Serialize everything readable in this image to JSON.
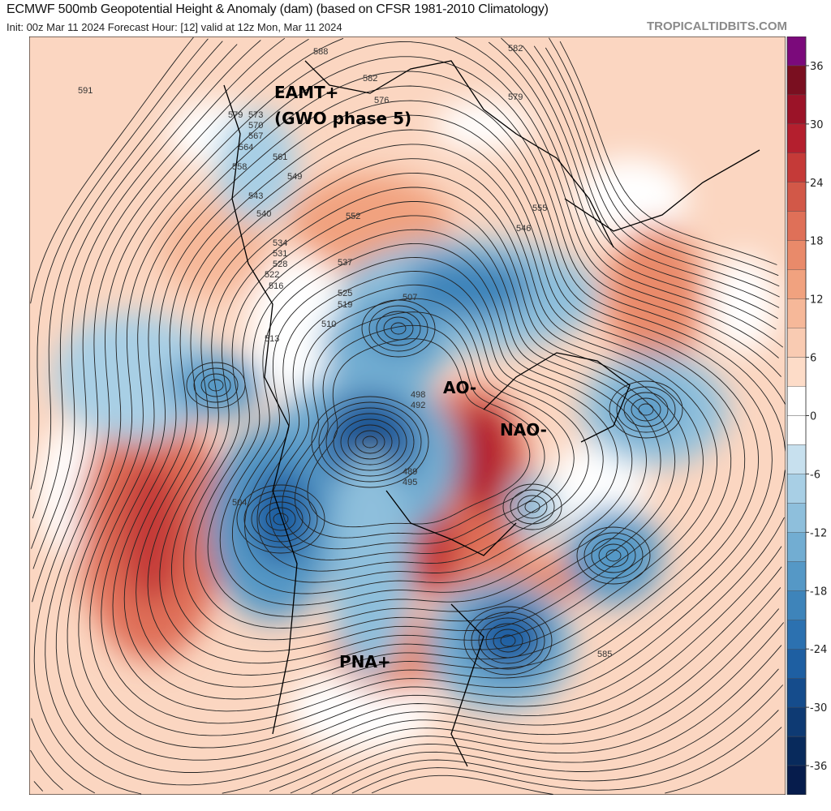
{
  "header": {
    "title": "ECMWF 500mb Geopotential Height & Anomaly (dam) (based on CFSR 1981-2010 Climatology)",
    "subtitle": "Init: 00z Mar 11 2024   Forecast Hour: [12]   valid at 12z Mon, Mar 11 2024",
    "brand": "TROPICALTIDBITS.COM"
  },
  "map": {
    "projection": "north-polar-stereographic",
    "annotations": [
      "EAMT+",
      "(GWO phase 5)",
      "AO-",
      "NAO-",
      "PNA+"
    ],
    "contour_labels": [
      "591",
      "588",
      "582",
      "579",
      "576",
      "573",
      "570",
      "567",
      "564",
      "561",
      "558",
      "555",
      "552",
      "549",
      "546",
      "543",
      "540",
      "537",
      "534",
      "531",
      "528",
      "525",
      "522",
      "519",
      "516",
      "513",
      "510",
      "507",
      "504",
      "498",
      "492",
      "489",
      "495",
      "585",
      "582",
      "579"
    ],
    "colors": {
      "positive_anomaly": "#d6604d",
      "negative_anomaly": "#2166ac",
      "neutral": "#ffffff",
      "land_outline": "#000000"
    }
  },
  "colorbar": {
    "unit": "dam",
    "tick_labels": [
      "36",
      "30",
      "24",
      "18",
      "12",
      "6",
      "0",
      "-6",
      "-12",
      "-18",
      "-24",
      "-30",
      "-36"
    ],
    "colors": [
      "#7b0a7b",
      "#7a0f20",
      "#9b1328",
      "#b41f2e",
      "#c53a38",
      "#d25848",
      "#df7058",
      "#e98a6a",
      "#f1a27f",
      "#f6b899",
      "#f9cbb2",
      "#fddcc8",
      "#ffffff",
      "#ffffff",
      "#c7e0ee",
      "#a8cfe5",
      "#8ebfdc",
      "#72add2",
      "#5598c6",
      "#3e84ba",
      "#2c71b0",
      "#1e5fa2",
      "#154c8c",
      "#0e3a73",
      "#082a5c",
      "#061c4c"
    ]
  }
}
